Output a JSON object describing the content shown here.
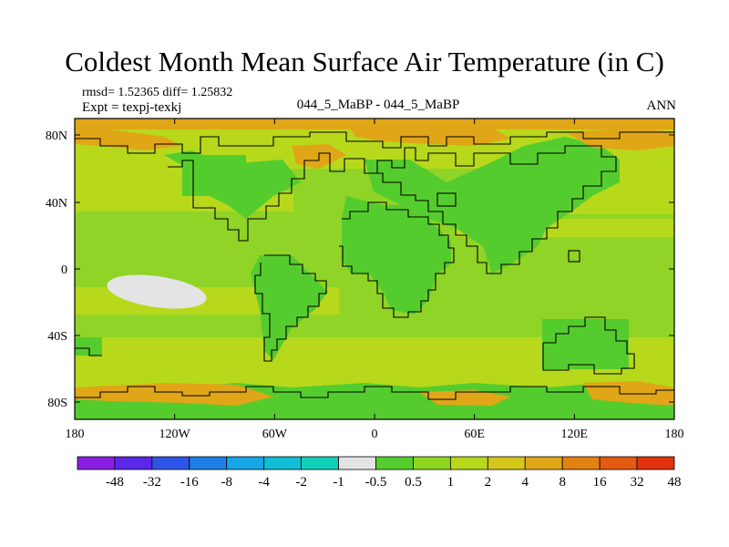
{
  "title": "Coldest Month Mean Surface Air Temperature (in C)",
  "stats_line": "rmsd= 1.52365 diff= 1.25832",
  "expt_line": "Expt = texpj-texkj",
  "center_label": "044_5_MaBP - 044_5_MaBP",
  "season_label": "ANN",
  "lat_labels": [
    "80N",
    "40N",
    "0",
    "40S",
    "80S"
  ],
  "lon_labels": [
    "180",
    "120W",
    "60W",
    "0",
    "60E",
    "120E",
    "180"
  ],
  "colorbar": {
    "colors": [
      "#8a1ee0",
      "#5a28e6",
      "#2f55e8",
      "#1f7fe6",
      "#17a5e6",
      "#10bfd6",
      "#12cfb8",
      "#e4e4e4",
      "#55cc2e",
      "#8fd61f",
      "#b8d81c",
      "#d4c61a",
      "#e0a618",
      "#e28212",
      "#e35a10",
      "#e2330c"
    ],
    "labels": [
      "-48",
      "-32",
      "-16",
      "-8",
      "-4",
      "-2",
      "-1",
      "-0.5",
      "0.5",
      "1",
      "2",
      "4",
      "8",
      "16",
      "32",
      "48"
    ]
  },
  "map_colors": {
    "ocean": "#8fd426",
    "land": "#55cc2e",
    "warm": "#b8d81c",
    "orange": "#e0a618",
    "neutral": "#e4e4e4"
  }
}
